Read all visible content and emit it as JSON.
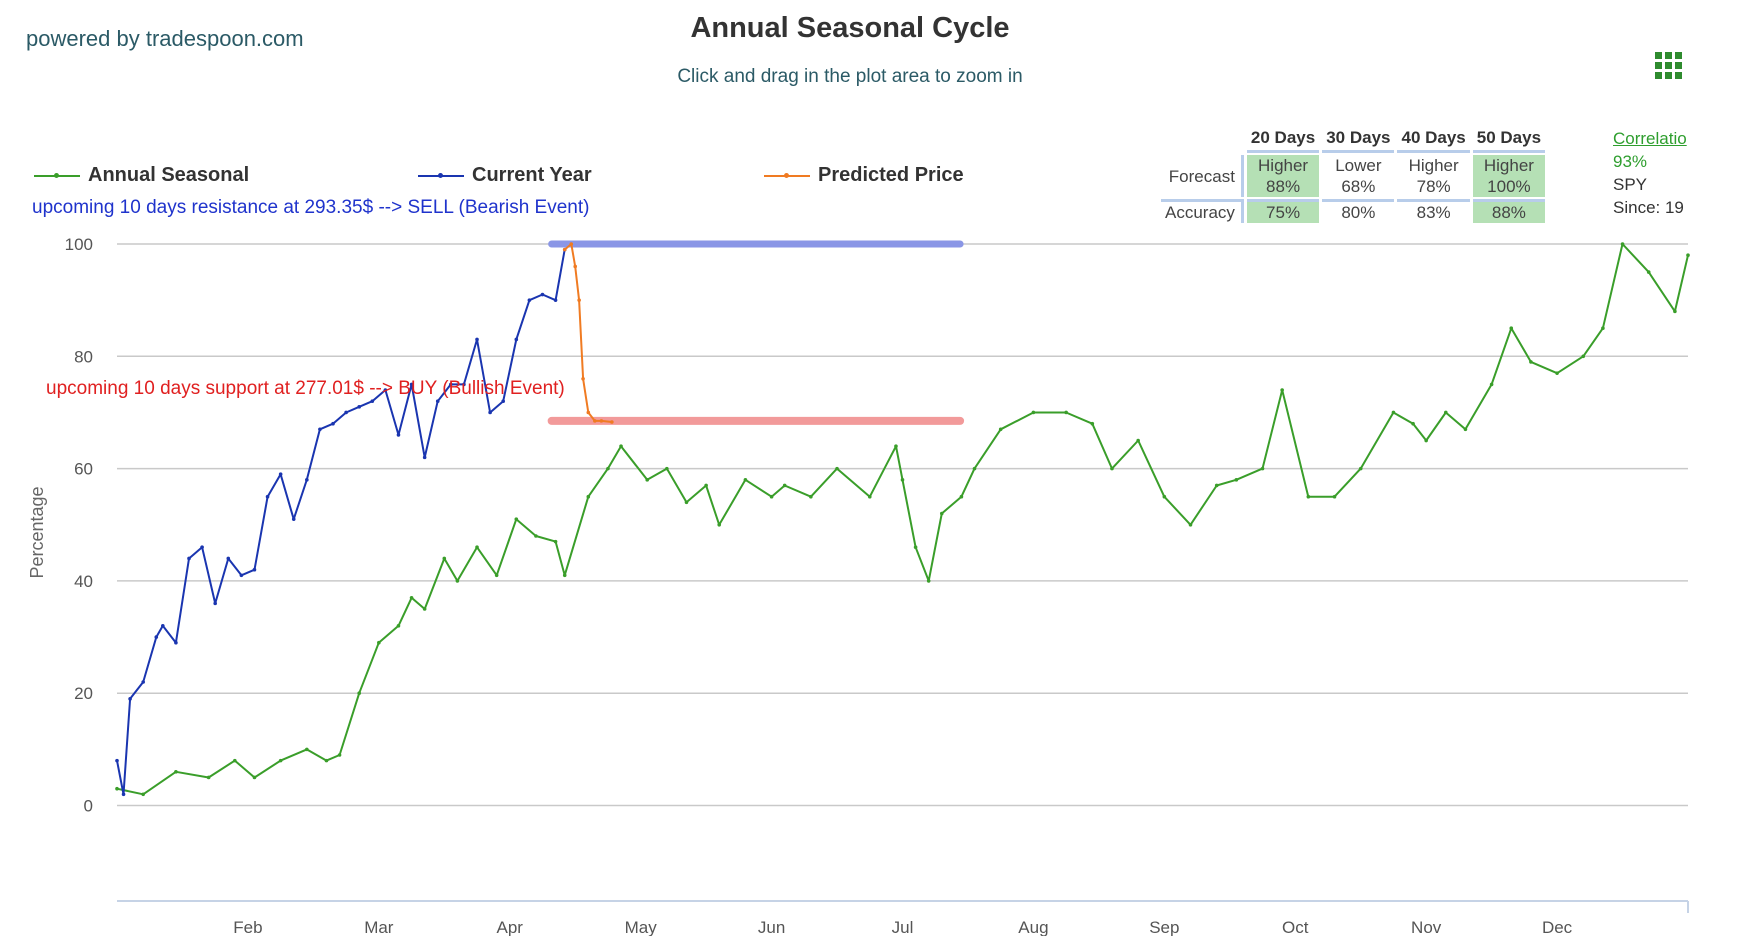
{
  "header": {
    "powered_by": "powered by tradespoon.com",
    "title": "Annual Seasonal Cycle",
    "subtitle": "Click and drag in the plot area to zoom in",
    "menu_icon": "hamburger-grid-icon"
  },
  "legend": [
    {
      "label": "Annual Seasonal",
      "color": "#3a9e2a"
    },
    {
      "label": "Current Year",
      "color": "#1a35b0"
    },
    {
      "label": "Predicted Price",
      "color": "#f07b22"
    }
  ],
  "annotations": {
    "resistance": "upcoming 10 days resistance at 293.35$ --> SELL (Bearish Event)",
    "support": "upcoming 10 days support at 277.01$ --> BUY (Bullish Event)"
  },
  "forecast_table": {
    "headers": [
      "20 Days",
      "30 Days",
      "40 Days",
      "50 Days"
    ],
    "forecast_label": "Forecast",
    "accuracy_label": "Accuracy",
    "forecast": [
      {
        "direction": "Higher",
        "pct": "88%",
        "highlight": true
      },
      {
        "direction": "Lower",
        "pct": "68%",
        "highlight": false
      },
      {
        "direction": "Higher",
        "pct": "78%",
        "highlight": false
      },
      {
        "direction": "Higher",
        "pct": "100%",
        "highlight": true
      }
    ],
    "accuracy": [
      {
        "value": "75%",
        "highlight": true
      },
      {
        "value": "80%",
        "highlight": false
      },
      {
        "value": "83%",
        "highlight": false
      },
      {
        "value": "88%",
        "highlight": true
      }
    ]
  },
  "correlation": {
    "link": "Correlatio",
    "value": "93%",
    "symbol": "SPY",
    "since": "Since: 19"
  },
  "chart_data": {
    "type": "line",
    "ylabel": "Percentage",
    "ylim": [
      -17,
      100
    ],
    "yticks": [
      0,
      20,
      40,
      60,
      80,
      100
    ],
    "x_axis_months": [
      "Feb",
      "Mar",
      "Apr",
      "May",
      "Jun",
      "Jul",
      "Aug",
      "Sep",
      "Oct",
      "Nov",
      "Dec"
    ],
    "x_unit": "month (1 = Jan 1, 13 = Dec 31)",
    "grid": true,
    "legend_position": "top",
    "resistance_level": {
      "y": 100,
      "x_start": 4.32,
      "x_end": 7.44,
      "color": "#8a96e6"
    },
    "support_level": {
      "y": 68.5,
      "x_start": 4.32,
      "x_end": 7.44,
      "color": "#f29a9a"
    },
    "series": [
      {
        "name": "Annual Seasonal",
        "color": "#3a9e2a",
        "x": [
          1.0,
          1.2,
          1.45,
          1.7,
          1.9,
          2.05,
          2.25,
          2.45,
          2.6,
          2.7,
          2.85,
          3.0,
          3.15,
          3.25,
          3.35,
          3.5,
          3.6,
          3.75,
          3.9,
          4.05,
          4.2,
          4.35,
          4.42,
          4.6,
          4.75,
          4.85,
          5.05,
          5.2,
          5.35,
          5.5,
          5.6,
          5.8,
          6.0,
          6.1,
          6.3,
          6.5,
          6.75,
          6.95,
          7.0,
          7.1,
          7.2,
          7.3,
          7.45,
          7.55,
          7.75,
          8.0,
          8.25,
          8.45,
          8.6,
          8.8,
          9.0,
          9.2,
          9.4,
          9.55,
          9.75,
          9.9,
          10.1,
          10.3,
          10.5,
          10.75,
          10.9,
          11.0,
          11.15,
          11.3,
          11.5,
          11.65,
          11.8,
          12.0,
          12.2,
          12.35,
          12.5,
          12.7,
          12.9,
          13.0
        ],
        "y": [
          3,
          2,
          6,
          5,
          8,
          5,
          8,
          10,
          8,
          9,
          20,
          29,
          32,
          37,
          35,
          44,
          40,
          46,
          41,
          51,
          48,
          47,
          41,
          55,
          60,
          64,
          58,
          60,
          54,
          57,
          50,
          58,
          55,
          57,
          55,
          60,
          55,
          64,
          58,
          46,
          40,
          52,
          55,
          60,
          67,
          70,
          70,
          68,
          60,
          65,
          55,
          50,
          57,
          58,
          60,
          74,
          55,
          55,
          60,
          70,
          68,
          65,
          70,
          67,
          75,
          85,
          79,
          77,
          80,
          85,
          100,
          95,
          88,
          98
        ]
      },
      {
        "name": "Current Year",
        "color": "#1a35b0",
        "x": [
          1.0,
          1.05,
          1.1,
          1.2,
          1.3,
          1.35,
          1.45,
          1.55,
          1.65,
          1.75,
          1.85,
          1.95,
          2.05,
          2.15,
          2.25,
          2.35,
          2.45,
          2.55,
          2.65,
          2.75,
          2.85,
          2.95,
          3.05,
          3.15,
          3.25,
          3.35,
          3.45,
          3.55,
          3.65,
          3.75,
          3.85,
          3.95,
          4.05,
          4.15,
          4.25,
          4.35,
          4.42
        ],
        "y": [
          8,
          2,
          19,
          22,
          30,
          32,
          29,
          44,
          46,
          36,
          44,
          41,
          42,
          55,
          59,
          51,
          58,
          67,
          68,
          70,
          71,
          72,
          74,
          66,
          75,
          62,
          72,
          75,
          75,
          83,
          70,
          72,
          83,
          90,
          91,
          90,
          99
        ]
      },
      {
        "name": "Predicted Price",
        "color": "#f07b22",
        "x": [
          4.42,
          4.47,
          4.5,
          4.53,
          4.56,
          4.6,
          4.65,
          4.7,
          4.78
        ],
        "y": [
          99,
          100,
          96,
          90,
          76,
          70,
          68.5,
          68.5,
          68.3
        ]
      }
    ]
  }
}
